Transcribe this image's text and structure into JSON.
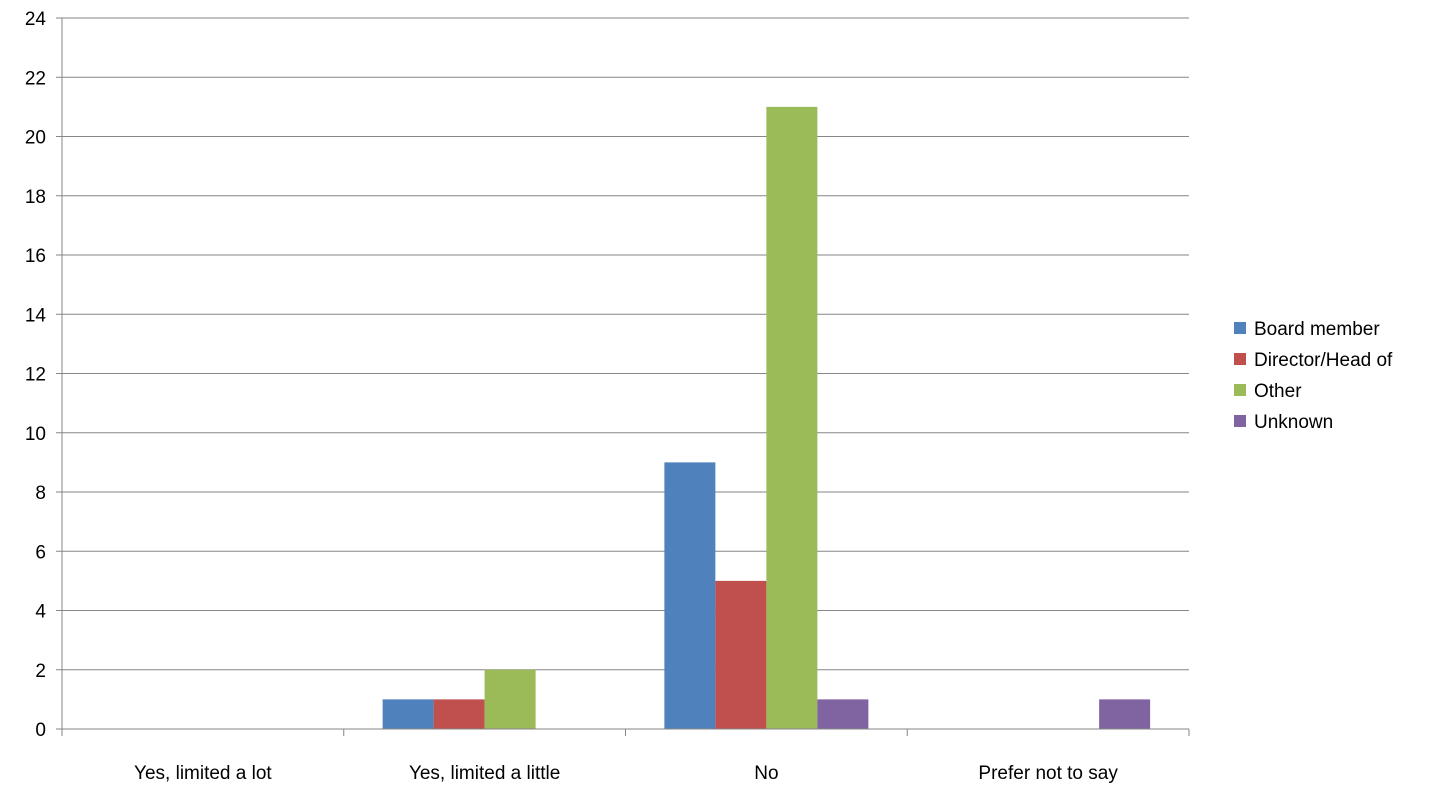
{
  "chart_data": {
    "type": "bar",
    "categories": [
      "Yes, limited a lot",
      "Yes, limited a little",
      "No",
      "Prefer not to say"
    ],
    "series": [
      {
        "name": "Board member",
        "color": "#4F81BD",
        "values": [
          0,
          1,
          9,
          0
        ]
      },
      {
        "name": "Director/Head of",
        "color": "#C0504D",
        "values": [
          0,
          1,
          5,
          0
        ]
      },
      {
        "name": "Other",
        "color": "#9BBB59",
        "values": [
          0,
          2,
          21,
          0
        ]
      },
      {
        "name": "Unknown",
        "color": "#8064A2",
        "values": [
          0,
          0,
          1,
          1
        ]
      }
    ],
    "title": "",
    "xlabel": "",
    "ylabel": "",
    "ylim": [
      0,
      24
    ],
    "ytick_step": 2,
    "grid": true,
    "legend_position": "right"
  }
}
